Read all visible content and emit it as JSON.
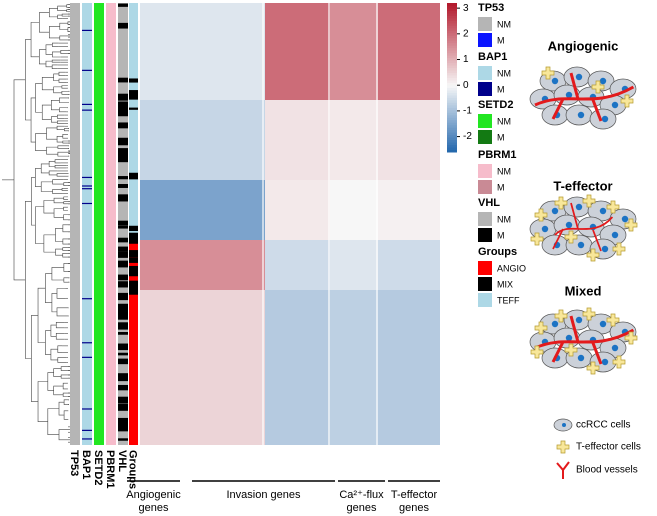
{
  "colorbar": {
    "lim": [
      -2.6,
      3.2
    ],
    "ticks": [
      3,
      2,
      1,
      0,
      -1,
      -2
    ]
  },
  "heatmap": {
    "values": [
      [
        -0.3,
        2,
        1.5,
        2
      ],
      [
        -0.6,
        0.3,
        0.2,
        0.3
      ],
      [
        -1.5,
        0.2,
        0,
        0.1
      ],
      [
        1.5,
        -0.5,
        -0.3,
        -0.5
      ],
      [
        0.5,
        -0.8,
        -0.7,
        -0.8
      ]
    ]
  },
  "tracks": [
    "TP53",
    "BAP1",
    "SETD2",
    "PBRM1",
    "VHL",
    "Groups"
  ],
  "legend": [
    {
      "title": "TP53",
      "items": [
        {
          "label": "NM",
          "color": "#b5b5b5"
        },
        {
          "label": "M",
          "color": "#0a14ff"
        }
      ]
    },
    {
      "title": "BAP1",
      "items": [
        {
          "label": "NM",
          "color": "#add8e6"
        },
        {
          "label": "M",
          "color": "#00008b"
        }
      ]
    },
    {
      "title": "SETD2",
      "items": [
        {
          "label": "NM",
          "color": "#22e622"
        },
        {
          "label": "M",
          "color": "#137a13"
        }
      ]
    },
    {
      "title": "PBRM1",
      "items": [
        {
          "label": "NM",
          "color": "#f6bccb"
        },
        {
          "label": "M",
          "color": "#c98a95"
        }
      ]
    },
    {
      "title": "VHL",
      "items": [
        {
          "label": "NM",
          "color": "#b5b5b5"
        },
        {
          "label": "M",
          "color": "#000000"
        }
      ]
    },
    {
      "title": "Groups",
      "items": [
        {
          "label": "ANGIO",
          "color": "#ff0000"
        },
        {
          "label": "MIX",
          "color": "#000000"
        },
        {
          "label": "TEFF",
          "color": "#add8e6"
        }
      ]
    }
  ],
  "gene_groups": [
    [
      "Angiogenic",
      "genes"
    ],
    [
      "Invasion genes"
    ],
    [
      "Ca²⁺-flux",
      "genes"
    ],
    [
      "T-effector",
      "genes"
    ]
  ],
  "panels": [
    "Angiogenic",
    "T-effector",
    "Mixed"
  ],
  "key": [
    "ccRCC cells",
    "T-effector cells",
    "Blood vessels"
  ]
}
